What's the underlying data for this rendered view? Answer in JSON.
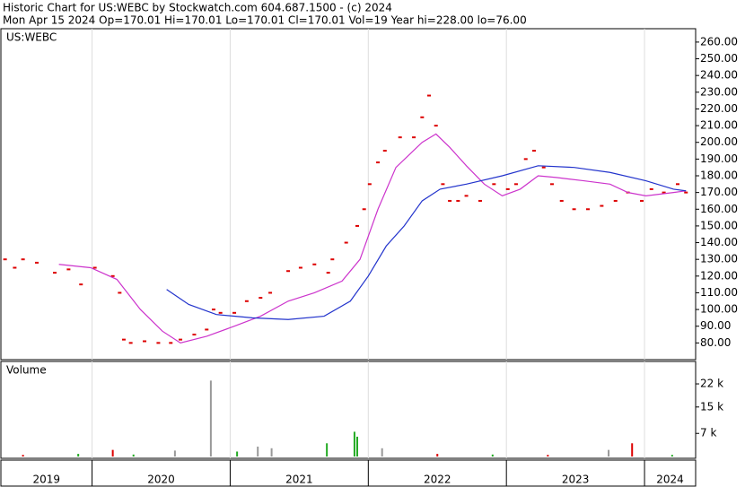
{
  "chart_data": {
    "type": "stock",
    "title": "Historic Chart for US:WEBC by Stockwatch.com 604.687.1500 - (c) 2024",
    "subtitle": "Mon Apr 15 2024   Op=170.01  Hi=170.01  Lo=170.01  Cl=170.01  Vol=19  Year hi=228.00  lo=76.00",
    "symbol": "US:WEBC",
    "xlim": [
      2019.34,
      2024.37
    ],
    "xticks": [
      2020,
      2021,
      2022,
      2023,
      2024
    ],
    "year_labels": [
      "2019",
      "2020",
      "2021",
      "2022",
      "2023",
      "2024"
    ],
    "ylim": [
      70,
      268
    ],
    "yticks": [
      {
        "value": 260,
        "label": "260.00"
      },
      {
        "value": 250,
        "label": "250.00"
      },
      {
        "value": 240,
        "label": "240.00"
      },
      {
        "value": 230,
        "label": "230.00"
      },
      {
        "value": 220,
        "label": "220.00"
      },
      {
        "value": 210,
        "label": "210.00"
      },
      {
        "value": 200,
        "label": "200.00"
      },
      {
        "value": 190,
        "label": "190.00"
      },
      {
        "value": 180,
        "label": "180.00"
      },
      {
        "value": 170,
        "label": "170.00"
      },
      {
        "value": 160,
        "label": "160.00"
      },
      {
        "value": 150,
        "label": "150.00"
      },
      {
        "value": 140,
        "label": "140.00"
      },
      {
        "value": 130,
        "label": "130.00"
      },
      {
        "value": 120,
        "label": "120.00"
      },
      {
        "value": 110,
        "label": "110.00"
      },
      {
        "value": 100,
        "label": "100.00"
      },
      {
        "value": 90,
        "label": "90.00"
      },
      {
        "value": 80,
        "label": "80.00"
      }
    ],
    "series": [
      {
        "color": "#dd0000",
        "style": "ticks",
        "x": [
          2019.37,
          2019.44,
          2019.5,
          2019.6,
          2019.73,
          2019.83,
          2019.92,
          2020.02,
          2020.15,
          2020.2,
          2020.23,
          2020.28,
          2020.38,
          2020.48,
          2020.57,
          2020.64,
          2020.74,
          2020.83,
          2020.88,
          2020.93,
          2021.03,
          2021.12,
          2021.22,
          2021.29,
          2021.42,
          2021.51,
          2021.61,
          2021.71,
          2021.74,
          2021.84,
          2021.92,
          2021.97,
          2022.01,
          2022.07,
          2022.12,
          2022.23,
          2022.33,
          2022.39,
          2022.44,
          2022.49,
          2022.54,
          2022.59,
          2022.65,
          2022.71,
          2022.81,
          2022.91,
          2023.01,
          2023.07,
          2023.14,
          2023.2,
          2023.27,
          2023.33,
          2023.4,
          2023.49,
          2023.59,
          2023.69,
          2023.79,
          2023.88,
          2023.98,
          2024.05,
          2024.14,
          2024.24,
          2024.3
        ],
        "values": [
          130,
          125,
          130,
          128,
          122,
          124,
          115,
          125,
          120,
          110,
          82,
          80,
          81,
          80,
          80,
          82,
          85,
          88,
          100,
          98,
          98,
          105,
          107,
          110,
          123,
          125,
          127,
          122,
          130,
          140,
          150,
          160,
          175,
          188,
          195,
          203,
          203,
          215,
          228,
          210,
          175,
          165,
          165,
          168,
          165,
          175,
          172,
          175,
          190,
          195,
          185,
          175,
          165,
          160,
          160,
          162,
          165,
          170,
          165,
          172,
          170,
          175,
          170
        ]
      },
      {
        "color": "#cc33cc",
        "style": "line",
        "x": [
          2019.76,
          2019.99,
          2020.18,
          2020.35,
          2020.51,
          2020.64,
          2020.83,
          2021.03,
          2021.22,
          2021.42,
          2021.61,
          2021.81,
          2021.94,
          2022.07,
          2022.2,
          2022.39,
          2022.49,
          2022.59,
          2022.71,
          2022.84,
          2022.97,
          2023.1,
          2023.23,
          2023.36,
          2023.56,
          2023.75,
          2023.88,
          2024.01,
          2024.21,
          2024.3
        ],
        "values": [
          127,
          125,
          118,
          100,
          87,
          80,
          84,
          90,
          96,
          105,
          110,
          117,
          130,
          160,
          185,
          200,
          205,
          197,
          186,
          175,
          168,
          172,
          180,
          179,
          177,
          175,
          170,
          168,
          170,
          171
        ]
      },
      {
        "color": "#2233cc",
        "style": "line",
        "x": [
          2020.54,
          2020.7,
          2020.9,
          2021.16,
          2021.42,
          2021.68,
          2021.87,
          2022.0,
          2022.13,
          2022.26,
          2022.39,
          2022.52,
          2022.71,
          2022.97,
          2023.23,
          2023.49,
          2023.75,
          2024.01,
          2024.21,
          2024.3
        ],
        "values": [
          112,
          103,
          97,
          95,
          94,
          96,
          105,
          120,
          138,
          150,
          165,
          172,
          175,
          180,
          186,
          185,
          182,
          177,
          172,
          171
        ]
      }
    ],
    "volume": {
      "label": "Volume",
      "ylim": [
        0,
        28800
      ],
      "yticks": [
        {
          "value": 22000,
          "label": "22 k"
        },
        {
          "value": 15000,
          "label": "15 k"
        },
        {
          "value": 7000,
          "label": "7 k"
        }
      ],
      "x": [
        2019.5,
        2019.9,
        2020.15,
        2020.3,
        2020.6,
        2020.86,
        2021.05,
        2021.2,
        2021.3,
        2021.7,
        2021.9,
        2021.92,
        2022.1,
        2022.5,
        2022.9,
        2023.3,
        2023.74,
        2023.91,
        2024.2
      ],
      "values": [
        500,
        800,
        2000,
        600,
        1800,
        23000,
        1500,
        3000,
        2500,
        4000,
        7500,
        6000,
        2500,
        800,
        600,
        500,
        2000,
        4000,
        500
      ],
      "colors": [
        "#dd0000",
        "#22aa22",
        "#dd0000",
        "#22aa22",
        "#999999",
        "#999999",
        "#22aa22",
        "#999999",
        "#999999",
        "#22aa22",
        "#22aa22",
        "#22aa22",
        "#999999",
        "#dd0000",
        "#22aa22",
        "#dd0000",
        "#999999",
        "#dd0000",
        "#22aa22"
      ]
    }
  }
}
